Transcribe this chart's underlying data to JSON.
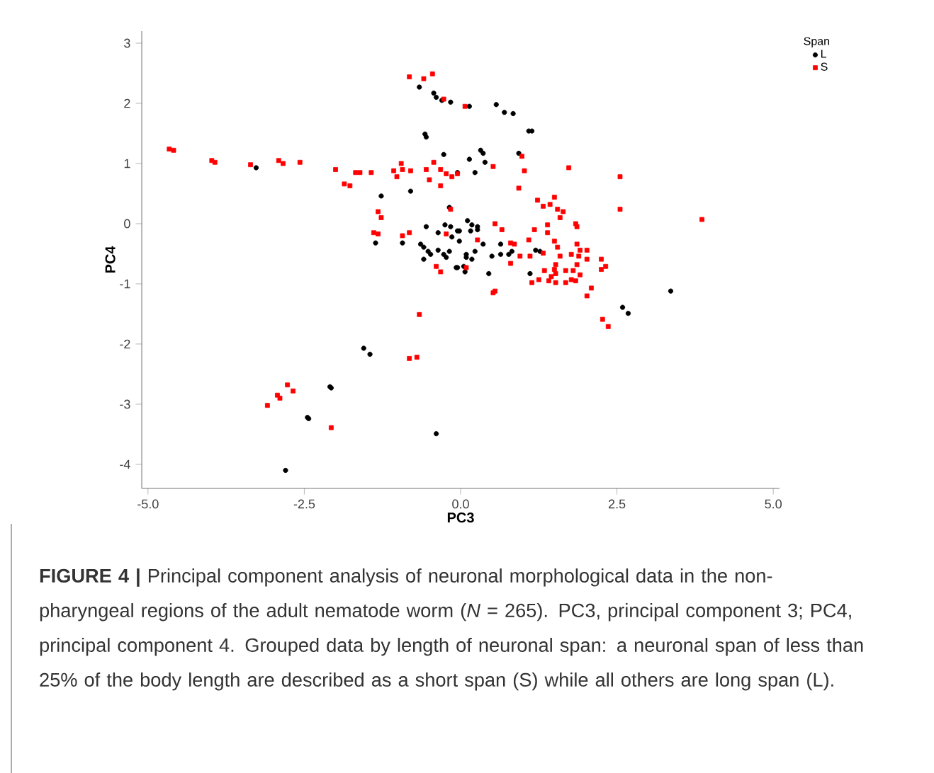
{
  "chart_data": {
    "type": "scatter",
    "xlabel": "PC3",
    "ylabel": "PC4",
    "legend_title": "Span",
    "legend": "top right",
    "grid": false,
    "xlim": [
      -5.1,
      5.1
    ],
    "ylim": [
      -4.4,
      3.2
    ],
    "xticks": [
      {
        "value": -5,
        "label": "-5.0"
      },
      {
        "value": -2.5,
        "label": "-2.5"
      },
      {
        "value": 0,
        "label": "0.0"
      },
      {
        "value": 2.5,
        "label": "2.5"
      },
      {
        "value": 5,
        "label": "5.0"
      }
    ],
    "yticks": [
      -4,
      -3,
      -2,
      -1,
      0,
      1,
      2,
      3
    ],
    "series": [
      {
        "name": "L",
        "color": "#000000",
        "marker": "circle",
        "x": [
          -0.66,
          -0.43,
          -0.39,
          -0.3,
          -0.16,
          -0.57,
          -0.55,
          -0.27,
          -3.27,
          -1.27,
          -0.8,
          -0.18,
          -0.55,
          -0.36,
          -0.25,
          -0.16,
          -0.14,
          -0.05,
          -1.36,
          -0.93,
          -0.64,
          -0.59,
          -0.52,
          -0.48,
          -0.59,
          -0.36,
          -0.27,
          -0.23,
          -0.18,
          -0.07,
          0.09,
          0.05,
          0.14,
          0.57,
          0.7,
          0.84,
          1.09,
          1.14,
          0.93,
          0.32,
          0.36,
          0.14,
          0.39,
          -0.05,
          0.23,
          0.11,
          0.18,
          0.27,
          -0.02,
          0.16,
          0.27,
          -0.02,
          0.36,
          0.64,
          0.23,
          0.09,
          0.18,
          0.5,
          0.64,
          0.77,
          0.82,
          1.2,
          1.27,
          -0.05,
          0.07,
          0.45,
          1.11,
          3.36,
          2.59,
          2.68,
          -1.55,
          -1.45,
          -2.09,
          -2.07,
          -2.45,
          -2.43,
          -2.8,
          -0.39
        ],
        "values": [
          2.27,
          2.17,
          2.1,
          2.05,
          2.02,
          1.49,
          1.44,
          1.15,
          0.93,
          0.46,
          0.54,
          0.27,
          -0.05,
          -0.15,
          -0.02,
          -0.05,
          -0.22,
          -0.12,
          -0.32,
          -0.32,
          -0.34,
          -0.39,
          -0.46,
          -0.51,
          -0.59,
          -0.44,
          -0.51,
          -0.56,
          -0.46,
          -0.73,
          -0.56,
          -0.71,
          1.95,
          1.98,
          1.85,
          1.83,
          1.54,
          1.54,
          1.17,
          1.22,
          1.17,
          1.07,
          1.02,
          0.85,
          0.85,
          0.05,
          -0.02,
          -0.05,
          -0.12,
          -0.12,
          -0.1,
          -0.29,
          -0.34,
          -0.34,
          -0.46,
          -0.51,
          -0.59,
          -0.54,
          -0.51,
          -0.51,
          -0.46,
          -0.44,
          -0.46,
          -0.73,
          -0.8,
          -0.83,
          -0.83,
          -1.12,
          -1.39,
          -1.49,
          -2.07,
          -2.17,
          -2.71,
          -2.73,
          -3.22,
          -3.24,
          -4.1,
          -3.49
        ]
      },
      {
        "name": "S",
        "color": "#ff0000",
        "marker": "square",
        "x": [
          -4.66,
          -4.59,
          -3.98,
          -3.93,
          -3.36,
          -2.91,
          -2.84,
          -2.57,
          -2.0,
          -1.68,
          -1.61,
          -1.43,
          -1.86,
          -1.77,
          -0.82,
          -0.59,
          -0.45,
          -0.27,
          0.07,
          -0.95,
          -0.93,
          -1.07,
          -1.02,
          -0.8,
          -0.55,
          -0.43,
          -0.32,
          -0.23,
          -0.14,
          -0.05,
          -0.5,
          -0.32,
          -1.32,
          -1.27,
          -1.39,
          -1.32,
          -0.93,
          -0.82,
          -0.23,
          -0.16,
          -0.39,
          -0.32,
          0.09,
          0.98,
          1.02,
          1.73,
          2.55,
          2.55,
          3.86,
          0.52,
          0.93,
          1.23,
          1.32,
          1.5,
          1.43,
          1.55,
          1.64,
          1.59,
          1.84,
          1.86,
          1.39,
          1.39,
          1.18,
          0.55,
          0.66,
          0.27,
          0.8,
          0.86,
          1.09,
          1.5,
          1.55,
          1.86,
          1.91,
          2.02,
          2.02,
          2.25,
          2.32,
          2.25,
          1.77,
          1.89,
          1.59,
          1.32,
          0.95,
          1.11,
          1.34,
          1.52,
          1.5,
          1.52,
          1.45,
          1.68,
          1.8,
          1.86,
          1.91,
          1.77,
          1.84,
          1.68,
          1.52,
          1.41,
          1.25,
          1.14,
          0.8,
          0.55,
          2.09,
          0.52,
          2.02,
          2.27,
          2.36,
          -0.66,
          -0.82,
          -0.7,
          -2.77,
          -2.68,
          -2.93,
          -2.89,
          -3.09,
          -2.07
        ],
        "values": [
          1.24,
          1.22,
          1.05,
          1.02,
          0.98,
          1.05,
          1.0,
          1.02,
          0.9,
          0.85,
          0.85,
          0.85,
          0.66,
          0.63,
          2.44,
          2.41,
          2.49,
          2.07,
          1.95,
          1.0,
          0.9,
          0.88,
          0.78,
          0.88,
          0.9,
          1.02,
          0.9,
          0.83,
          0.78,
          0.83,
          0.73,
          0.63,
          0.2,
          0.1,
          -0.15,
          -0.17,
          -0.2,
          -0.15,
          -0.17,
          0.24,
          -0.71,
          -0.8,
          -0.73,
          1.12,
          0.88,
          0.93,
          0.78,
          0.24,
          0.07,
          0.95,
          0.59,
          0.39,
          0.29,
          0.44,
          0.32,
          0.24,
          0.2,
          0.1,
          0.0,
          -0.05,
          -0.02,
          -0.15,
          -0.1,
          0.0,
          -0.1,
          -0.27,
          -0.32,
          -0.34,
          -0.27,
          -0.29,
          -0.39,
          -0.34,
          -0.44,
          -0.44,
          -0.59,
          -0.59,
          -0.71,
          -0.76,
          -0.51,
          -0.54,
          -0.54,
          -0.49,
          -0.54,
          -0.54,
          -0.78,
          -0.68,
          -0.76,
          -0.83,
          -0.88,
          -0.78,
          -0.78,
          -0.68,
          -0.85,
          -0.93,
          -0.95,
          -0.98,
          -0.98,
          -0.95,
          -0.93,
          -0.98,
          -0.66,
          -1.12,
          -1.07,
          -1.15,
          -1.2,
          -1.59,
          -1.71,
          -1.51,
          -2.24,
          -2.22,
          -2.68,
          -2.78,
          -2.85,
          -2.9,
          -3.02,
          -3.39
        ]
      }
    ],
    "annotations": [
      "**FIGURE 4 |** Principal component analysis of neuronal morphological data in the non-pharyngeal regions of the adult nematode worm (*N* = 265). PC3, principal component 3; PC4, principal component 4. Grouped data by length of neuronal span: a neuronal span of less than 25% of the body length are described as a short span (S) while all others are long span (L)."
    ]
  }
}
